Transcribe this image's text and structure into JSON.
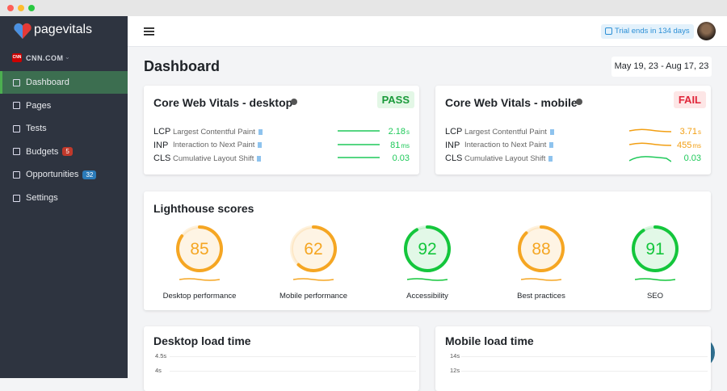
{
  "sidebar": {
    "brand": "pagevitals",
    "site_icon": "CNN",
    "site": "CNN.COM",
    "nav": [
      {
        "label": "Dashboard"
      },
      {
        "label": "Pages"
      },
      {
        "label": "Tests"
      },
      {
        "label": "Budgets",
        "badge": 5
      },
      {
        "label": "Opportunities",
        "badge": 32
      },
      {
        "label": "Settings"
      }
    ]
  },
  "header": {
    "trial": "Trial ends in 134 days"
  },
  "page": {
    "title": "Dashboard",
    "date_range": "May 19, 23 - Aug 17, 23"
  },
  "vitals": [
    {
      "title": "Core Web Vitals - desktop",
      "status": "PASS",
      "status_color": "#1a9a3a",
      "status_bg": "#e3f7e6",
      "metrics": [
        {
          "name": "LCP",
          "label": "Largest Contentful Paint",
          "value": 2.18,
          "unit": "s",
          "color": "#1fc95a"
        },
        {
          "name": "INP",
          "label": "Interaction to Next Paint",
          "value": 81,
          "unit": "ms",
          "color": "#1fc95a"
        },
        {
          "name": "CLS",
          "label": "Cumulative Layout Shift",
          "value": 0.03,
          "color": "#1fc95a"
        }
      ]
    },
    {
      "title": "Core Web Vitals - mobile",
      "status": "FAIL",
      "status_color": "#e0263a",
      "status_bg": "#fde6e6",
      "metrics": [
        {
          "name": "LCP",
          "label": "Largest Contentful Paint",
          "value": 3.71,
          "unit": "s",
          "color": "#f29f13"
        },
        {
          "name": "INP",
          "label": "Interaction to Next Paint",
          "value": 455,
          "unit": "ms",
          "color": "#f29f13"
        },
        {
          "name": "CLS",
          "label": "Cumulative Layout Shift",
          "value": 0.03,
          "color": "#1fc95a"
        }
      ]
    }
  ],
  "lighthouse": {
    "title": "Lighthouse scores",
    "score_range": [
      0,
      100
    ],
    "scores": [
      {
        "label": "Desktop performance",
        "value": 85,
        "color": "#f5a623"
      },
      {
        "label": "Mobile performance",
        "value": 62,
        "color": "#f5a623"
      },
      {
        "label": "Accessibility",
        "value": 92,
        "color": "#14c63c"
      },
      {
        "label": "Best practices",
        "value": 88,
        "color": "#f5a623"
      },
      {
        "label": "SEO",
        "value": 91,
        "color": "#14c63c"
      }
    ]
  },
  "load_time": [
    {
      "title": "Desktop load time",
      "yticks": [
        "4.5s",
        "4s"
      ]
    },
    {
      "title": "Mobile load time",
      "yticks": [
        "14s",
        "12s"
      ]
    }
  ]
}
